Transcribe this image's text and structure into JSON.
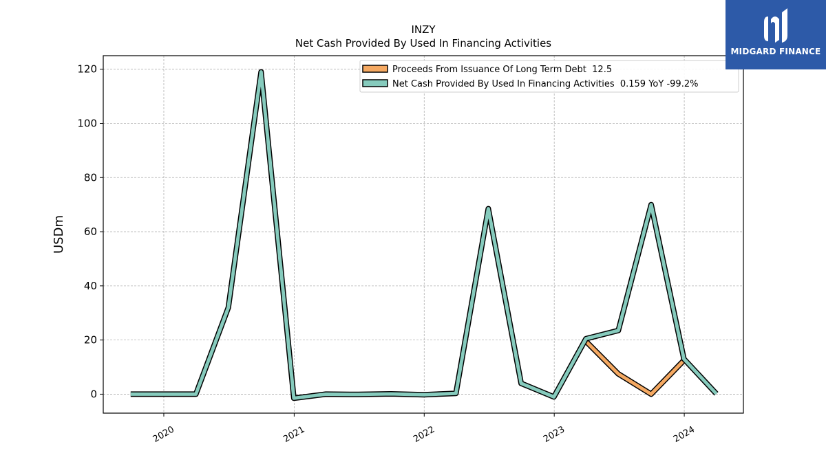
{
  "chart_data": {
    "type": "line",
    "title": "INZY",
    "subtitle": "Net Cash Provided By Used In Financing Activities",
    "ylabel": "USDm",
    "xlabel": "",
    "ylim": [
      -7,
      125
    ],
    "xlim": [
      "2019-07-15",
      "2024-06-15"
    ],
    "yticks": [
      0,
      20,
      40,
      60,
      80,
      100,
      120
    ],
    "xticks": [
      {
        "label": "2020",
        "date": "2020-01-01"
      },
      {
        "label": "2021",
        "date": "2021-01-01"
      },
      {
        "label": "2022",
        "date": "2022-01-01"
      },
      {
        "label": "2023",
        "date": "2023-01-01"
      },
      {
        "label": "2024",
        "date": "2024-01-01"
      }
    ],
    "grid": true,
    "legend_position": "top-right",
    "series": [
      {
        "name": "Proceeds From Issuance Of Long Term Debt  12.5",
        "color": "#f5a962",
        "x": [
          "2023-03-31",
          "2023-06-30",
          "2023-09-30",
          "2023-12-31"
        ],
        "values": [
          19.5,
          7.5,
          0.0,
          12.5
        ]
      },
      {
        "name": "Net Cash Provided By Used In Financing Activities  0.159 YoY -99.2%",
        "color": "#86cbbd",
        "x": [
          "2019-09-30",
          "2019-12-31",
          "2020-03-31",
          "2020-06-30",
          "2020-09-30",
          "2020-12-31",
          "2021-03-31",
          "2021-06-30",
          "2021-09-30",
          "2021-12-31",
          "2022-03-31",
          "2022-06-30",
          "2022-09-30",
          "2022-12-31",
          "2023-03-31",
          "2023-06-30",
          "2023-09-30",
          "2023-12-31",
          "2024-03-31"
        ],
        "values": [
          0.0,
          0.0,
          0.0,
          32.0,
          119.0,
          -1.5,
          0.0,
          -0.1,
          0.1,
          -0.2,
          0.3,
          68.5,
          4.0,
          -1.0,
          20.5,
          23.5,
          70.0,
          13.0,
          0.159
        ]
      }
    ]
  },
  "logo": {
    "text": "MIDGARD FINANCE",
    "icon": "midgard-m-icon",
    "color": "#2d5aa8"
  }
}
